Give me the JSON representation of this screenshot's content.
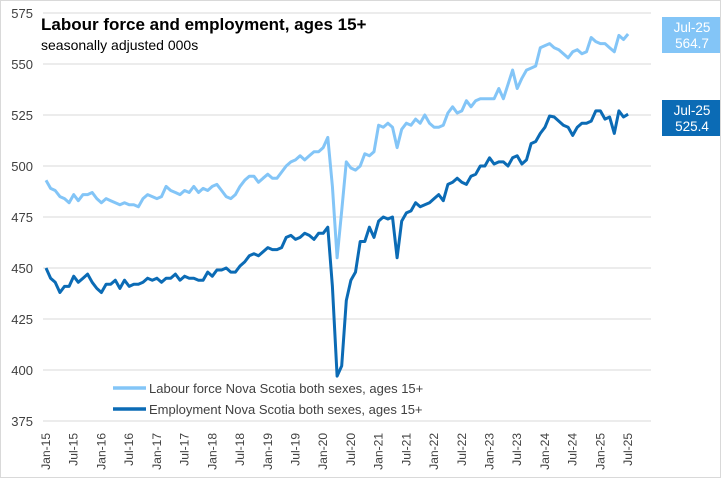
{
  "chart_data": {
    "type": "line",
    "title": "Labour force and employment, ages 15+",
    "subtitle": "seasonally adjusted 000s",
    "xlabel": "",
    "ylabel": "",
    "ylim": [
      375,
      575
    ],
    "yticks": [
      375,
      400,
      425,
      450,
      475,
      500,
      525,
      550,
      575
    ],
    "x_start": "Jan-15",
    "x_frequency": "monthly",
    "x_tick_labels": [
      "Jan-15",
      "Jul-15",
      "Jan-16",
      "Jul-16",
      "Jan-17",
      "Jul-17",
      "Jan-18",
      "Jul-18",
      "Jan-19",
      "Jul-19",
      "Jan-20",
      "Jul-20",
      "Jan-21",
      "Jul-21",
      "Jan-22",
      "Jul-22",
      "Jan-23",
      "Jul-23",
      "Jan-24",
      "Jul-24",
      "Jan-25",
      "Jul-25"
    ],
    "grid": true,
    "legend_position": "bottom-left",
    "series": [
      {
        "name": "Labour force Nova Scotia both sexes, ages 15+",
        "color": "#83c5f7",
        "values": [
          493,
          489,
          488,
          485,
          484,
          482,
          486,
          483,
          486,
          486,
          487,
          484,
          482,
          484,
          483,
          482,
          481,
          482,
          481,
          481,
          480,
          484,
          486,
          485,
          484,
          485,
          490,
          488,
          487,
          486,
          488,
          487,
          490,
          487,
          489,
          488,
          490,
          491,
          488,
          485,
          484,
          486,
          490,
          493,
          495,
          495,
          492,
          494,
          496,
          494,
          494,
          497,
          500,
          502,
          503,
          505,
          503,
          505,
          507,
          507,
          509,
          514,
          490,
          455,
          478,
          502,
          499,
          498,
          500,
          506,
          505,
          507,
          520,
          519,
          521,
          519,
          509,
          518,
          521,
          520,
          523,
          521,
          525,
          521,
          519,
          519,
          520,
          526,
          529,
          526,
          527,
          532,
          529,
          532,
          533,
          533,
          533,
          533,
          538,
          533,
          540,
          547,
          538,
          543,
          547,
          548,
          549,
          558,
          559,
          560,
          558,
          557,
          555,
          553,
          556,
          557,
          555,
          556,
          563,
          561,
          560,
          560,
          558,
          556,
          564,
          562,
          564.7
        ],
        "end_label": {
          "period": "Jul-25",
          "value": "564.7"
        }
      },
      {
        "name": "Employment Nova Scotia both sexes, ages 15+",
        "color": "#0b6bb5",
        "values": [
          450,
          445,
          443,
          438,
          441,
          441,
          446,
          443,
          445,
          447,
          443,
          440,
          438,
          442,
          442,
          444,
          440,
          444,
          441,
          442,
          442,
          443,
          445,
          444,
          445,
          443,
          445,
          445,
          447,
          444,
          446,
          445,
          445,
          444,
          444,
          448,
          446,
          449,
          449,
          450,
          448,
          448,
          451,
          453,
          456,
          457,
          456,
          458,
          460,
          459,
          459,
          460,
          465,
          466,
          464,
          465,
          467,
          466,
          464,
          467,
          467,
          470,
          441,
          397,
          402,
          434,
          444,
          448,
          463,
          463,
          470,
          465,
          473,
          475,
          474,
          475,
          455,
          473,
          477,
          478,
          482,
          480,
          481,
          482,
          484,
          486,
          483,
          491,
          492,
          494,
          492,
          491,
          495,
          496,
          500,
          500,
          504,
          501,
          502,
          502,
          500,
          504,
          505,
          501,
          503,
          511,
          512,
          516,
          519,
          524.5,
          524,
          522,
          520,
          519,
          515,
          519,
          521,
          521,
          522,
          527,
          527,
          523,
          524,
          516,
          527,
          524,
          525.4
        ],
        "end_label": {
          "period": "Jul-25",
          "value": "525.4"
        }
      }
    ]
  }
}
